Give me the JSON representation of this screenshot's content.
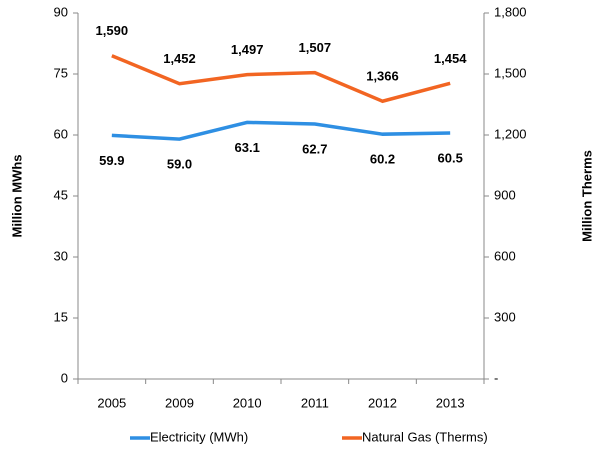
{
  "chart_data": {
    "type": "line",
    "categories": [
      "2005",
      "2009",
      "2010",
      "2011",
      "2012",
      "2013"
    ],
    "series": [
      {
        "name": "Electricity (MWh)",
        "color": "#2e8fe3",
        "values": [
          59.9,
          59.0,
          63.1,
          62.7,
          60.2,
          60.5
        ],
        "value_labels": [
          "59.9",
          "59.0",
          "63.1",
          "62.7",
          "60.2",
          "60.5"
        ]
      },
      {
        "name": "Natural Gas (Therms)",
        "color": "#f26522",
        "axis": "y2",
        "values": [
          1590,
          1452,
          1497,
          1507,
          1366,
          1454
        ],
        "value_labels": [
          "1,590",
          "1,452",
          "1,497",
          "1,507",
          "1,366",
          "1,454"
        ]
      }
    ],
    "ylabel": "Million MWhs",
    "y2label": "Million Therms",
    "ylim": [
      0,
      90
    ],
    "yticks": [
      0,
      15,
      30,
      45,
      60,
      75,
      90
    ],
    "y2lim": [
      0,
      1800
    ],
    "y2ticks": [
      {
        "value": 0,
        "label": "-"
      },
      300,
      600,
      900,
      {
        "value": 1200,
        "label": "1,200"
      },
      {
        "value": 1500,
        "label": "1,500"
      },
      {
        "value": 1800,
        "label": "1,800"
      }
    ],
    "legend": "bottom"
  }
}
